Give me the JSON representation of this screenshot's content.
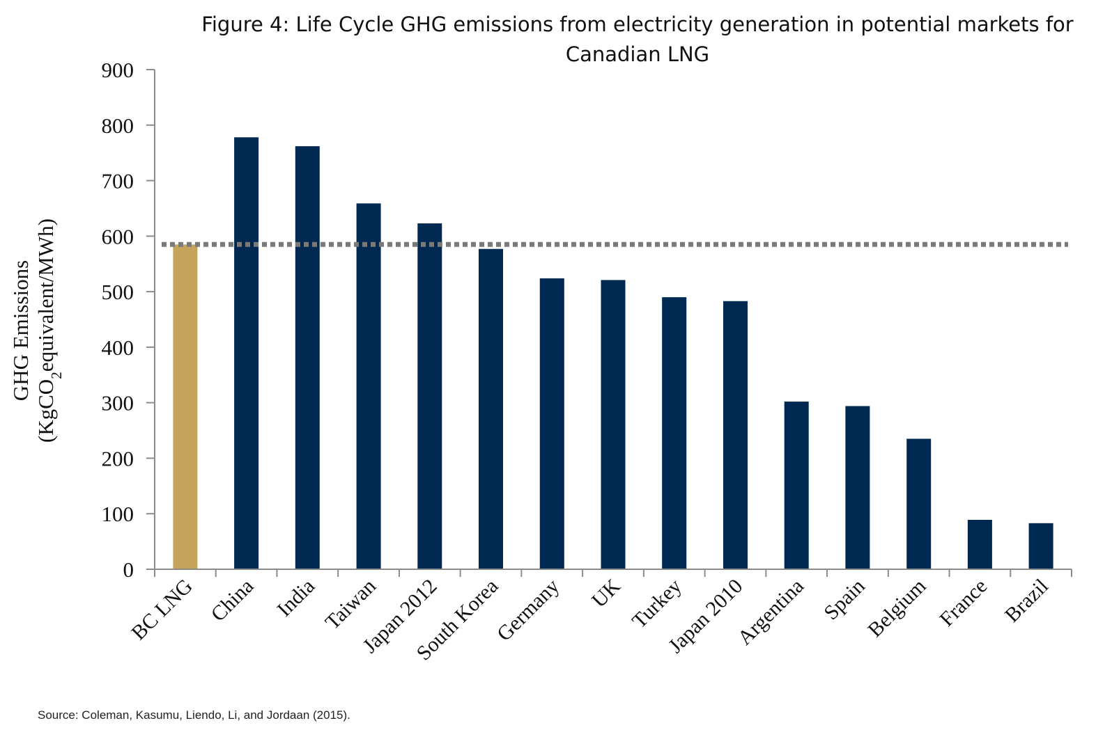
{
  "chart_data": {
    "type": "bar",
    "title": "Figure 4: Life Cycle GHG emissions from electricity generation in potential markets for Canadian LNG",
    "ylabel_line1": "GHG Emissions",
    "ylabel_line2_prefix": "(KgCO",
    "ylabel_line2_sub": "2",
    "ylabel_line2_suffix": "equivalent/MWh)",
    "categories": [
      "BC LNG",
      "China",
      "India",
      "Taiwan",
      "Japan 2012",
      "South Korea",
      "Germany",
      "UK",
      "Turkey",
      "Japan 2010",
      "Argentina",
      "Spain",
      "Belgium",
      "France",
      "Brazil"
    ],
    "values": [
      585,
      778,
      762,
      659,
      623,
      577,
      524,
      521,
      490,
      483,
      302,
      294,
      235,
      89,
      83
    ],
    "ylim": [
      0,
      900
    ],
    "yticks": [
      0,
      100,
      200,
      300,
      400,
      500,
      600,
      700,
      800,
      900
    ],
    "reference_line": 585,
    "grid": false,
    "legend": "none",
    "colors": {
      "highlight": "#C4A35A",
      "bar": "#002952",
      "reference_line": "#7a7a7a",
      "axis": "#8c8c8c"
    },
    "highlight_index": 0
  },
  "source": "Source: Coleman, Kasumu, Liendo, Li, and Jordaan (2015)."
}
